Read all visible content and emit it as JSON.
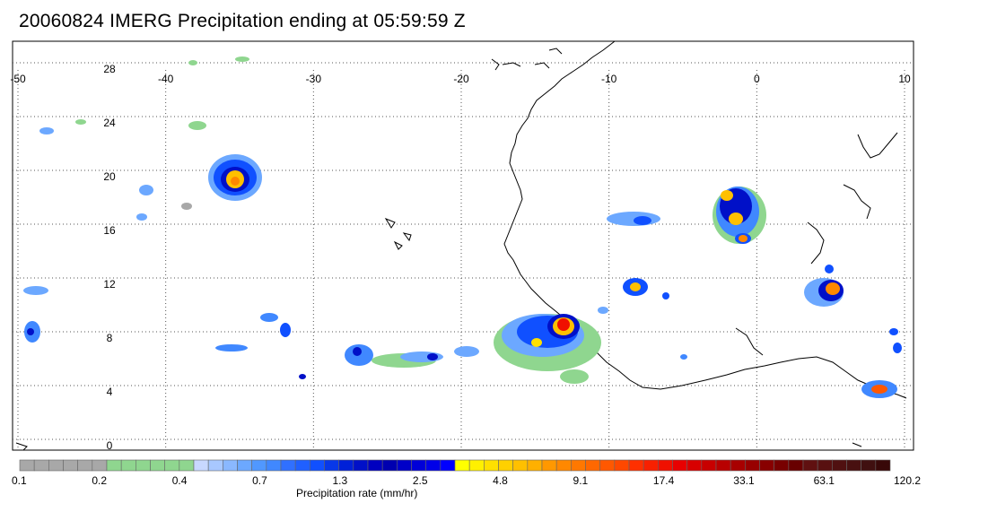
{
  "title": "20060824 IMERG Precipitation ending at 05:59:59 Z",
  "map": {
    "lon_labels": [
      "-50",
      "-40",
      "-30",
      "-20",
      "-10",
      "0",
      "10"
    ],
    "lat_labels": [
      "28",
      "24",
      "20",
      "16",
      "12",
      "8",
      "4",
      "0"
    ],
    "extent": {
      "lon": [
        -50,
        10
      ],
      "lat": [
        -0.5,
        29.5
      ]
    }
  },
  "colorbar": {
    "title": "Precipitation rate (mm/hr)",
    "labels": [
      "0.1",
      "0.2",
      "0.4",
      "0.7",
      "1.3",
      "2.5",
      "4.8",
      "9.1",
      "17.4",
      "33.1",
      "63.1",
      "120.2"
    ],
    "colors": [
      "#a8a8a8",
      "#a8a8a8",
      "#a8a8a8",
      "#a8a8a8",
      "#a8a8a8",
      "#a8a8a8",
      "#8fd68f",
      "#8fd68f",
      "#8fd68f",
      "#8fd68f",
      "#8fd68f",
      "#8fd68f",
      "#c8d8ff",
      "#a8c8ff",
      "#8ab8ff",
      "#6ca8ff",
      "#5098ff",
      "#4088ff",
      "#3070ff",
      "#2060ff",
      "#1050ff",
      "#0838e8",
      "#0020d8",
      "#0010c8",
      "#0000c0",
      "#0000b0",
      "#0000c8",
      "#0000d8",
      "#0000e8",
      "#0000ff",
      "#ffff00",
      "#fff000",
      "#ffe000",
      "#ffd000",
      "#ffc000",
      "#ffb000",
      "#ff9800",
      "#ff8800",
      "#ff7800",
      "#ff6800",
      "#ff5800",
      "#ff4800",
      "#ff3000",
      "#f82000",
      "#f01000",
      "#e80000",
      "#d80000",
      "#c80000",
      "#b80000",
      "#a80000",
      "#980000",
      "#880000",
      "#780000",
      "#680000",
      "#601010",
      "#581010",
      "#501010",
      "#481010",
      "#401010",
      "#380808"
    ]
  }
}
